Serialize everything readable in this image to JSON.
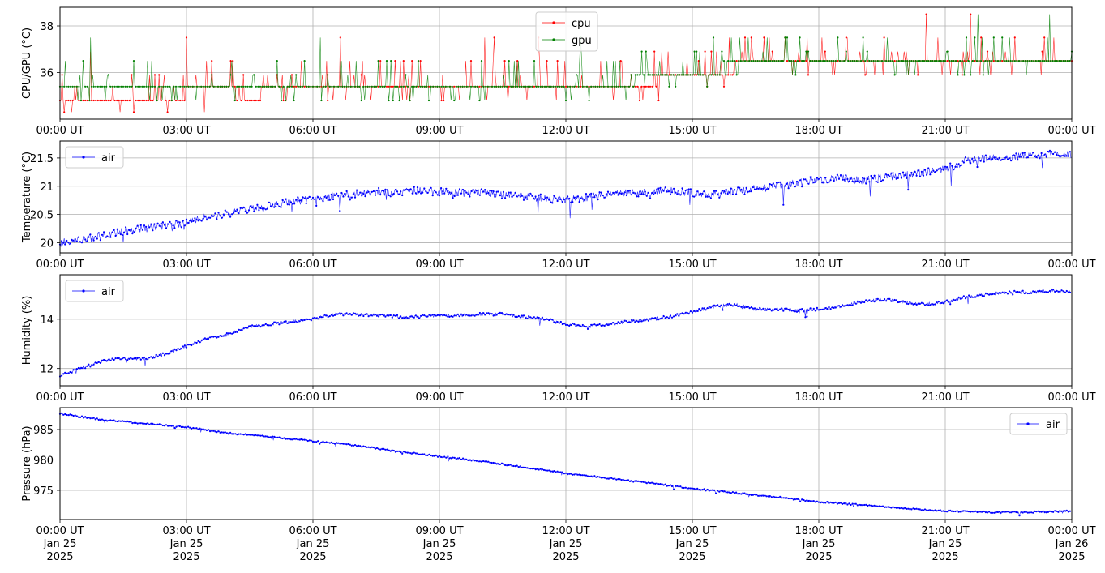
{
  "chart_data": [
    {
      "id": "cpu-gpu",
      "type": "line",
      "ylabel": "CPU/GPU (°C)",
      "ylim": [
        34.0,
        38.8
      ],
      "yticks": [
        36,
        38
      ],
      "grid": true,
      "legend": "top-center",
      "x": [
        "00:00",
        "01:00",
        "01:50",
        "02:00",
        "03:00",
        "04:00",
        "04:30",
        "05:00",
        "06:00",
        "07:00",
        "08:00",
        "09:00",
        "10:00",
        "11:00",
        "12:00",
        "13:00",
        "14:00",
        "14:40",
        "15:00",
        "15:30",
        "16:00",
        "17:00",
        "18:00",
        "19:00",
        "20:00",
        "21:00",
        "22:00",
        "23:00",
        "23:59"
      ],
      "series": [
        {
          "name": "cpu",
          "color": "#ff0000",
          "values": [
            34.8,
            34.9,
            35.1,
            34.9,
            35.1,
            35.2,
            34.9,
            35.3,
            35.4,
            35.4,
            35.4,
            35.4,
            35.4,
            35.4,
            35.4,
            35.5,
            35.6,
            35.8,
            35.9,
            36.0,
            36.2,
            36.3,
            36.4,
            36.4,
            36.4,
            36.4,
            36.4,
            36.4,
            36.4
          ]
        },
        {
          "name": "gpu",
          "color": "#008000",
          "values": [
            35.4,
            35.4,
            35.4,
            35.4,
            35.4,
            35.4,
            35.4,
            35.4,
            35.4,
            35.4,
            35.4,
            35.4,
            35.4,
            35.4,
            35.4,
            35.4,
            35.8,
            35.9,
            35.9,
            36.1,
            36.4,
            36.4,
            36.4,
            36.4,
            36.4,
            36.4,
            36.4,
            36.4,
            36.4
          ]
        }
      ]
    },
    {
      "id": "temperature",
      "type": "line",
      "ylabel": "Temperature (°C)",
      "ylim": [
        19.82,
        21.8
      ],
      "yticks": [
        20.0,
        20.5,
        21.0,
        21.5
      ],
      "grid": true,
      "legend": "top-left",
      "x": [
        "00:00",
        "00:30",
        "01:00",
        "01:30",
        "02:00",
        "02:30",
        "03:00",
        "03:30",
        "04:00",
        "04:30",
        "05:00",
        "05:30",
        "06:00",
        "06:30",
        "07:00",
        "07:30",
        "08:00",
        "08:30",
        "09:00",
        "09:30",
        "10:00",
        "10:30",
        "11:00",
        "11:30",
        "12:00",
        "12:30",
        "13:00",
        "13:30",
        "14:00",
        "14:30",
        "15:00",
        "15:30",
        "16:00",
        "16:30",
        "17:00",
        "17:30",
        "18:00",
        "18:30",
        "19:00",
        "19:30",
        "20:00",
        "20:30",
        "21:00",
        "21:30",
        "22:00",
        "22:30",
        "23:00",
        "23:30",
        "23:59"
      ],
      "series": [
        {
          "name": "air",
          "color": "#0000ff",
          "values": [
            20.0,
            20.05,
            20.12,
            20.2,
            20.25,
            20.3,
            20.35,
            20.45,
            20.52,
            20.6,
            20.66,
            20.72,
            20.78,
            20.82,
            20.86,
            20.9,
            20.9,
            20.92,
            20.9,
            20.88,
            20.88,
            20.85,
            20.82,
            20.78,
            20.76,
            20.8,
            20.85,
            20.88,
            20.9,
            20.92,
            20.88,
            20.85,
            20.9,
            20.95,
            21.0,
            21.05,
            21.12,
            21.15,
            21.1,
            21.15,
            21.2,
            21.25,
            21.3,
            21.45,
            21.5,
            21.52,
            21.55,
            21.58,
            21.55
          ]
        }
      ]
    },
    {
      "id": "humidity",
      "type": "line",
      "ylabel": "Humidity (%)",
      "ylim": [
        11.3,
        15.8
      ],
      "yticks": [
        12,
        14
      ],
      "grid": true,
      "legend": "top-left",
      "x": [
        "00:00",
        "00:30",
        "01:00",
        "01:30",
        "02:00",
        "02:30",
        "03:00",
        "03:30",
        "04:00",
        "04:30",
        "05:00",
        "05:30",
        "06:00",
        "06:30",
        "07:00",
        "07:30",
        "08:00",
        "08:30",
        "09:00",
        "09:30",
        "10:00",
        "10:30",
        "11:00",
        "11:30",
        "12:00",
        "12:30",
        "13:00",
        "13:30",
        "14:00",
        "14:30",
        "15:00",
        "15:30",
        "16:00",
        "16:30",
        "17:00",
        "17:30",
        "18:00",
        "18:30",
        "19:00",
        "19:30",
        "20:00",
        "20:30",
        "21:00",
        "21:30",
        "22:00",
        "22:30",
        "23:00",
        "23:30",
        "23:59"
      ],
      "series": [
        {
          "name": "air",
          "color": "#0000ff",
          "values": [
            11.7,
            12.0,
            12.3,
            12.4,
            12.4,
            12.6,
            12.9,
            13.2,
            13.4,
            13.7,
            13.8,
            13.9,
            14.0,
            14.2,
            14.2,
            14.15,
            14.1,
            14.1,
            14.15,
            14.15,
            14.2,
            14.2,
            14.1,
            14.0,
            13.8,
            13.7,
            13.8,
            13.9,
            14.0,
            14.1,
            14.3,
            14.5,
            14.6,
            14.4,
            14.4,
            14.35,
            14.4,
            14.5,
            14.7,
            14.8,
            14.7,
            14.6,
            14.7,
            14.9,
            15.0,
            15.1,
            15.1,
            15.15,
            15.1
          ]
        }
      ]
    },
    {
      "id": "pressure",
      "type": "line",
      "ylabel": "Pressure (hPa)",
      "ylim": [
        970.2,
        988.6
      ],
      "yticks": [
        975,
        980,
        985
      ],
      "grid": true,
      "legend": "top-right",
      "x": [
        "00:00",
        "01:00",
        "02:00",
        "03:00",
        "04:00",
        "05:00",
        "06:00",
        "07:00",
        "08:00",
        "09:00",
        "10:00",
        "11:00",
        "12:00",
        "13:00",
        "14:00",
        "15:00",
        "16:00",
        "17:00",
        "18:00",
        "19:00",
        "20:00",
        "21:00",
        "22:00",
        "23:00",
        "23:59"
      ],
      "series": [
        {
          "name": "air",
          "color": "#0000ff",
          "values": [
            987.6,
            986.6,
            986.0,
            985.4,
            984.4,
            983.8,
            983.1,
            982.4,
            981.4,
            980.6,
            979.8,
            978.8,
            977.8,
            977.0,
            976.2,
            975.3,
            974.6,
            973.9,
            973.1,
            972.6,
            972.0,
            971.6,
            971.4,
            971.4,
            971.6
          ]
        }
      ]
    }
  ],
  "x_axis": {
    "time_ticks": [
      "00:00 UT",
      "03:00 UT",
      "06:00 UT",
      "09:00 UT",
      "12:00 UT",
      "15:00 UT",
      "18:00 UT",
      "21:00 UT",
      "00:00 UT"
    ],
    "date_ticks": [
      "Jan 25",
      "Jan 25",
      "Jan 25",
      "Jan 25",
      "Jan 25",
      "Jan 25",
      "Jan 25",
      "Jan 25",
      "Jan 26"
    ],
    "year_ticks": [
      "2025",
      "2025",
      "2025",
      "2025",
      "2025",
      "2025",
      "2025",
      "2025",
      "2025"
    ]
  }
}
